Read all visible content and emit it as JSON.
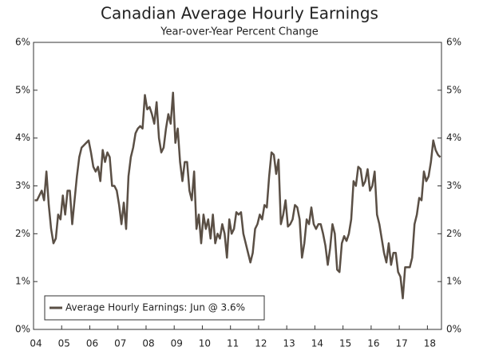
{
  "chart_data": {
    "type": "line",
    "title": "Canadian Average Hourly Earnings",
    "subtitle": "Year-over-Year Percent Change",
    "categories": [
      "04",
      null,
      null,
      null,
      null,
      null,
      null,
      null,
      null,
      null,
      null,
      null,
      "05",
      null,
      null,
      null,
      null,
      null,
      null,
      null,
      null,
      null,
      null,
      null,
      "06",
      null,
      null,
      null,
      null,
      null,
      null,
      null,
      null,
      null,
      null,
      null,
      "07",
      null,
      null,
      null,
      null,
      null,
      null,
      null,
      null,
      null,
      null,
      null,
      "08",
      null,
      null,
      null,
      null,
      null,
      null,
      null,
      null,
      null,
      null,
      null,
      "09",
      null,
      null,
      null,
      null,
      null,
      null,
      null,
      null,
      null,
      null,
      null,
      "10",
      null,
      null,
      null,
      null,
      null,
      null,
      null,
      null,
      null,
      null,
      null,
      "11",
      null,
      null,
      null,
      null,
      null,
      null,
      null,
      null,
      null,
      null,
      null,
      "12",
      null,
      null,
      null,
      null,
      null,
      null,
      null,
      null,
      null,
      null,
      null,
      "13",
      null,
      null,
      null,
      null,
      null,
      null,
      null,
      null,
      null,
      null,
      null,
      "14",
      null,
      null,
      null,
      null,
      null,
      null,
      null,
      null,
      null,
      null,
      null,
      "15",
      null,
      null,
      null,
      null,
      null,
      null,
      null,
      null,
      null,
      null,
      null,
      "16",
      null,
      null,
      null,
      null,
      null,
      null,
      null,
      null,
      null,
      null,
      null,
      "17",
      null,
      null,
      null,
      null,
      null,
      null,
      null,
      null,
      null,
      null,
      null,
      "18",
      null,
      null,
      null,
      null,
      null
    ],
    "series": [
      {
        "name": "Average Hourly Earnings: Jun @ 3.6%",
        "color": "#5a4f45",
        "values": [
          2.7,
          2.7,
          2.8,
          2.9,
          2.7,
          3.3,
          2.6,
          2.1,
          1.8,
          1.9,
          2.4,
          2.3,
          2.8,
          2.4,
          2.9,
          2.9,
          2.2,
          2.7,
          3.2,
          3.6,
          3.8,
          3.85,
          3.9,
          3.95,
          3.7,
          3.4,
          3.3,
          3.4,
          3.1,
          3.75,
          3.5,
          3.7,
          3.6,
          3.0,
          3.0,
          2.9,
          2.6,
          2.2,
          2.65,
          2.1,
          3.2,
          3.6,
          3.8,
          4.1,
          4.2,
          4.25,
          4.2,
          4.9,
          4.6,
          4.65,
          4.5,
          4.3,
          4.75,
          4.0,
          3.7,
          3.8,
          4.2,
          4.5,
          4.3,
          4.95,
          3.9,
          4.2,
          3.5,
          3.1,
          3.5,
          3.5,
          2.9,
          2.7,
          3.3,
          2.1,
          2.4,
          1.8,
          2.4,
          2.1,
          2.3,
          1.9,
          2.4,
          1.8,
          2.0,
          1.9,
          2.2,
          2.0,
          1.5,
          2.3,
          2.0,
          2.1,
          2.45,
          2.4,
          2.45,
          2.0,
          1.8,
          1.6,
          1.4,
          1.6,
          2.1,
          2.2,
          2.4,
          2.3,
          2.6,
          2.55,
          3.2,
          3.7,
          3.65,
          3.25,
          3.55,
          2.2,
          2.4,
          2.7,
          2.15,
          2.2,
          2.3,
          2.6,
          2.55,
          2.3,
          1.5,
          1.8,
          2.3,
          2.2,
          2.55,
          2.2,
          2.1,
          2.2,
          2.2,
          2.0,
          1.75,
          1.35,
          1.7,
          2.2,
          2.0,
          1.25,
          1.2,
          1.8,
          1.95,
          1.85,
          2.0,
          2.3,
          3.1,
          3.0,
          3.4,
          3.35,
          3.0,
          3.1,
          3.35,
          2.9,
          3.0,
          3.3,
          2.4,
          2.2,
          1.9,
          1.6,
          1.4,
          1.8,
          1.35,
          1.6,
          1.6,
          1.2,
          1.1,
          0.65,
          1.3,
          1.3,
          1.3,
          1.5,
          2.2,
          2.4,
          2.75,
          2.7,
          3.3,
          3.1,
          3.2,
          3.5,
          3.95,
          3.75,
          3.65,
          3.6
        ]
      }
    ],
    "ylim": [
      0,
      6
    ],
    "yticks": [
      {
        "value": 0,
        "label": "0%"
      },
      {
        "value": 1,
        "label": "1%"
      },
      {
        "value": 2,
        "label": "2%"
      },
      {
        "value": 3,
        "label": "3%"
      },
      {
        "value": 4,
        "label": "4%"
      },
      {
        "value": 5,
        "label": "5%"
      },
      {
        "value": 6,
        "label": "6%"
      }
    ],
    "y2lim": [
      0,
      6
    ],
    "y2ticks": [
      {
        "value": 0,
        "label": "0%"
      },
      {
        "value": 1,
        "label": "1%"
      },
      {
        "value": 2,
        "label": "2%"
      },
      {
        "value": 3,
        "label": "3%"
      },
      {
        "value": 4,
        "label": "4%"
      },
      {
        "value": 5,
        "label": "5%"
      },
      {
        "value": 6,
        "label": "6%"
      }
    ],
    "grid": false,
    "legend": "lower left"
  }
}
